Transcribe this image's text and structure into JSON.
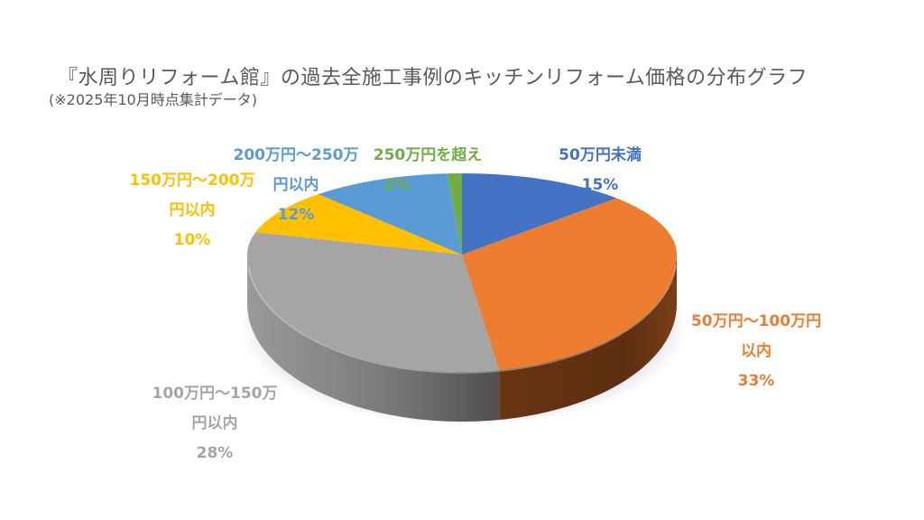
{
  "chart_data": {
    "type": "pie",
    "style": "3d-pie",
    "title": "『水周りリフォーム館』の過去全施工事例のキッチンリフォーム価格の分布グラフ",
    "subtitle": "(※2025年10月時点集計データ)",
    "legend": "none (data labels on slices)",
    "slices": [
      {
        "label": "50万円未満",
        "value": 15,
        "display": "15%",
        "color": "#4472C4"
      },
      {
        "label": "50万円～100万円以内",
        "value": 33,
        "display": "33%",
        "color": "#ED7D31"
      },
      {
        "label": "100万円～150万円以内",
        "value": 28,
        "display": "28%",
        "color": "#A5A5A5"
      },
      {
        "label": "150万円～200万円以内",
        "value": 10,
        "display": "10%",
        "color": "#FFC000"
      },
      {
        "label": "200万円～250万円以内",
        "value": 12,
        "display": "12%",
        "color": "#5B9BD5"
      },
      {
        "label": "250万円を超え",
        "value": 2,
        "display": "2%",
        "color": "#70AD47"
      }
    ]
  },
  "labels": {
    "s0": {
      "line1": "50万円未満",
      "line2": "15%"
    },
    "s1": {
      "line1": "50万円～100万円",
      "line2": "以内",
      "line3": "33%"
    },
    "s2": {
      "line1": "100万円～150万",
      "line2": "円以内",
      "line3": "28%"
    },
    "s3": {
      "line1": "150万円～200万",
      "line2": "円以内",
      "line3": "10%"
    },
    "s4": {
      "line1": "200万円～250万",
      "line2": "円以内",
      "line3": "12%"
    },
    "s5": {
      "line1": "250万円を超え",
      "line2": "2%"
    }
  }
}
